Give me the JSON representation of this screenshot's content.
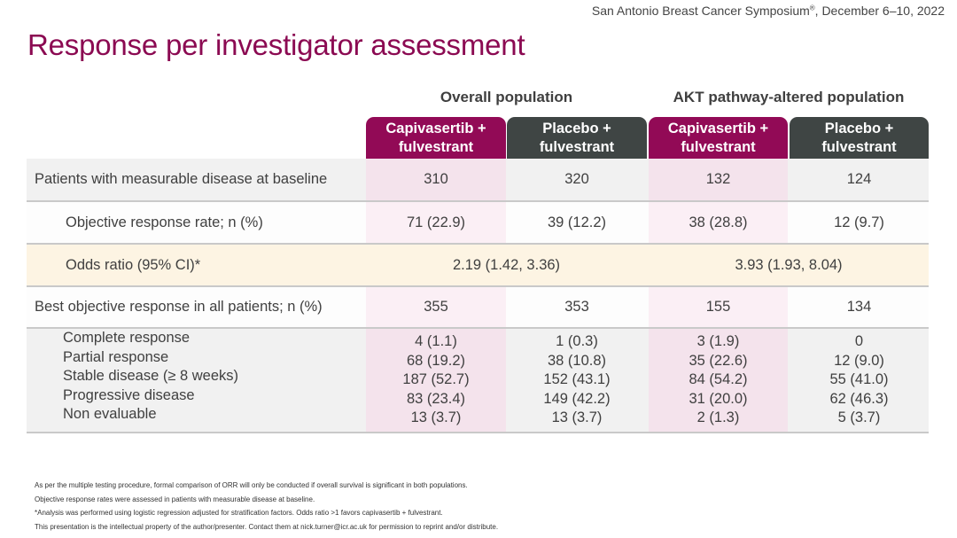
{
  "header": {
    "conference": "San Antonio Breast Cancer Symposium",
    "conference_mark": "®",
    "conference_date": ", December 6–10, 2022",
    "title": "Response per investigator assessment"
  },
  "colors": {
    "capivasertib": "#920a56",
    "placebo": "#3f4544",
    "title": "#8b0a52",
    "odds_row": "#fdf4e3"
  },
  "table": {
    "groups": [
      "Overall population",
      "AKT pathway-altered population"
    ],
    "columns": [
      {
        "line1": "Capivasertib +",
        "line2": "fulvestrant"
      },
      {
        "line1": "Placebo +",
        "line2": "fulvestrant"
      },
      {
        "line1": "Capivasertib +",
        "line2": "fulvestrant"
      },
      {
        "line1": "Placebo +",
        "line2": "fulvestrant"
      }
    ],
    "measurable": {
      "label": "Patients with measurable disease at baseline",
      "values": [
        "310",
        "320",
        "132",
        "124"
      ]
    },
    "orr": {
      "label": "Objective response rate; n (%)",
      "values": [
        "71 (22.9)",
        "39 (12.2)",
        "38 (28.8)",
        "12 (9.7)"
      ]
    },
    "odds": {
      "label": "Odds ratio (95% CI)*",
      "values": [
        "2.19 (1.42, 3.36)",
        "3.93 (1.93, 8.04)"
      ]
    },
    "best": {
      "label": "Best objective response in all patients; n (%)",
      "values": [
        "355",
        "353",
        "155",
        "134"
      ]
    },
    "responses": {
      "labels": [
        "Complete response",
        "Partial response",
        "Stable disease (≥ 8 weeks)",
        "Progressive disease",
        "Non evaluable"
      ],
      "columns": [
        [
          "4 (1.1)",
          "68 (19.2)",
          "187 (52.7)",
          "83 (23.4)",
          "13 (3.7)"
        ],
        [
          "1 (0.3)",
          "38 (10.8)",
          "152 (43.1)",
          "149 (42.2)",
          "13 (3.7)"
        ],
        [
          "3 (1.9)",
          "35 (22.6)",
          "84 (54.2)",
          "31 (20.0)",
          "2 (1.3)"
        ],
        [
          "0",
          "12 (9.0)",
          "55 (41.0)",
          "62 (46.3)",
          "5 (3.7)"
        ]
      ]
    }
  },
  "footnotes": [
    "As per the multiple testing procedure, formal comparison of ORR will only be conducted if overall survival is significant in both populations.",
    "Objective response rates were assessed in patients with measurable disease at baseline.",
    "*Analysis was performed using logistic regression adjusted for stratification factors. Odds ratio >1 favors capivasertib + fulvestrant.",
    "This presentation is the intellectual property of the author/presenter. Contact them at nick.turner@icr.ac.uk for permission to reprint and/or distribute."
  ]
}
